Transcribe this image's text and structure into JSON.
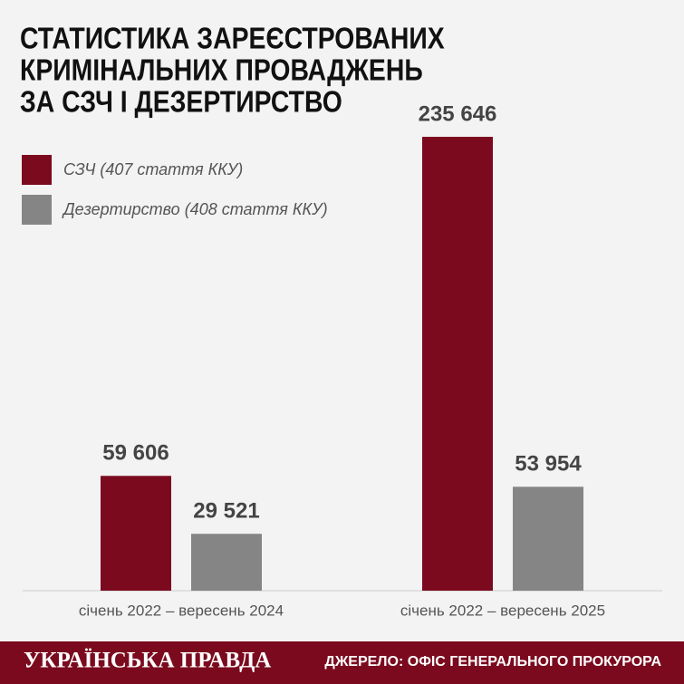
{
  "chart_data": {
    "type": "bar",
    "title": [
      "СТАТИСТИКА ЗАРЕЄСТРОВАНИХ",
      "КРИМІНАЛЬНИХ ПРОВАДЖЕНЬ",
      "ЗА СЗЧ І ДЕЗЕРТИРСТВО"
    ],
    "categories": [
      "січень 2022 – вересень 2024",
      "січень 2022 – вересень 2025"
    ],
    "series": [
      {
        "name": "СЗЧ (407 стаття ККУ)",
        "color": "#7b0a1e",
        "values": [
          59606,
          235646
        ],
        "value_labels": [
          "59 606",
          "235 646"
        ]
      },
      {
        "name": "Дезертирство (408 стаття ККУ)",
        "color": "#858585",
        "values": [
          29521,
          53954
        ],
        "value_labels": [
          "29 521",
          "53 954"
        ]
      }
    ],
    "legend": "upper left"
  },
  "footer": {
    "brand": "УКРАЇНСЬКА ПРАВДА",
    "source": "ДЖЕРЕЛО: ОФІС ГЕНЕРАЛЬНОГО ПРОКУРОРА"
  }
}
